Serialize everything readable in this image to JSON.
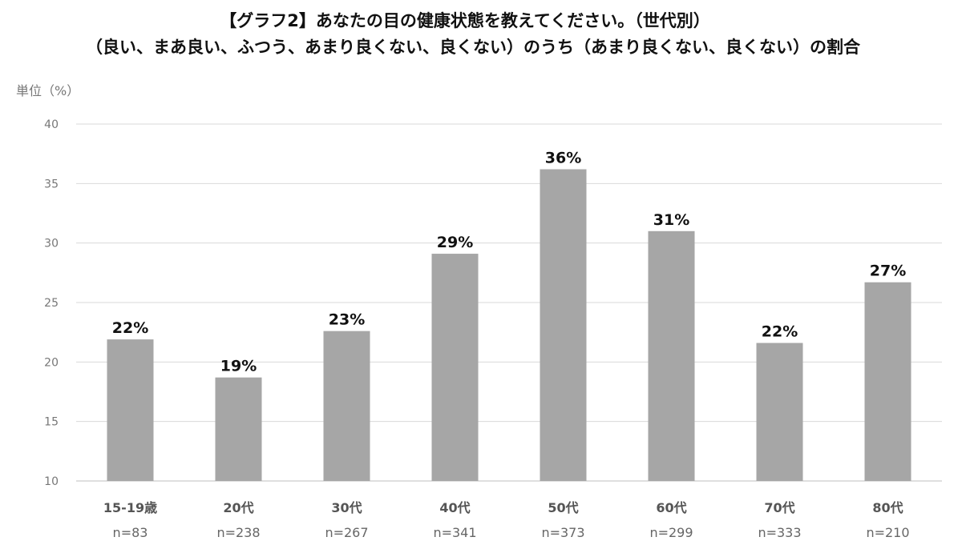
{
  "chart_data": {
    "type": "bar",
    "title": "【グラフ2】あなたの目の健康状態を教えてください。（世代別）",
    "subtitle": "（良い、まあ良い、ふつう、あまり良くない、良くない）のうち（あまり良くない、良くない）の割合",
    "ylabel": "単位（%）",
    "xlabel": "",
    "ylim": [
      10,
      40
    ],
    "yticks": [
      10,
      15,
      20,
      25,
      30,
      35,
      40
    ],
    "grid": true,
    "categories": [
      "15-19歳",
      "20代",
      "30代",
      "40代",
      "50代",
      "60代",
      "70代",
      "80代"
    ],
    "sample_sizes": [
      "n=83",
      "n=238",
      "n=267",
      "n=341",
      "n=373",
      "n=299",
      "n=333",
      "n=210"
    ],
    "values": [
      21.9,
      18.7,
      22.6,
      29.1,
      36.2,
      31.0,
      21.6,
      26.7
    ],
    "data_labels": [
      "22%",
      "19%",
      "23%",
      "29%",
      "36%",
      "31%",
      "22%",
      "27%"
    ],
    "bar_color": "#a6a6a6"
  }
}
